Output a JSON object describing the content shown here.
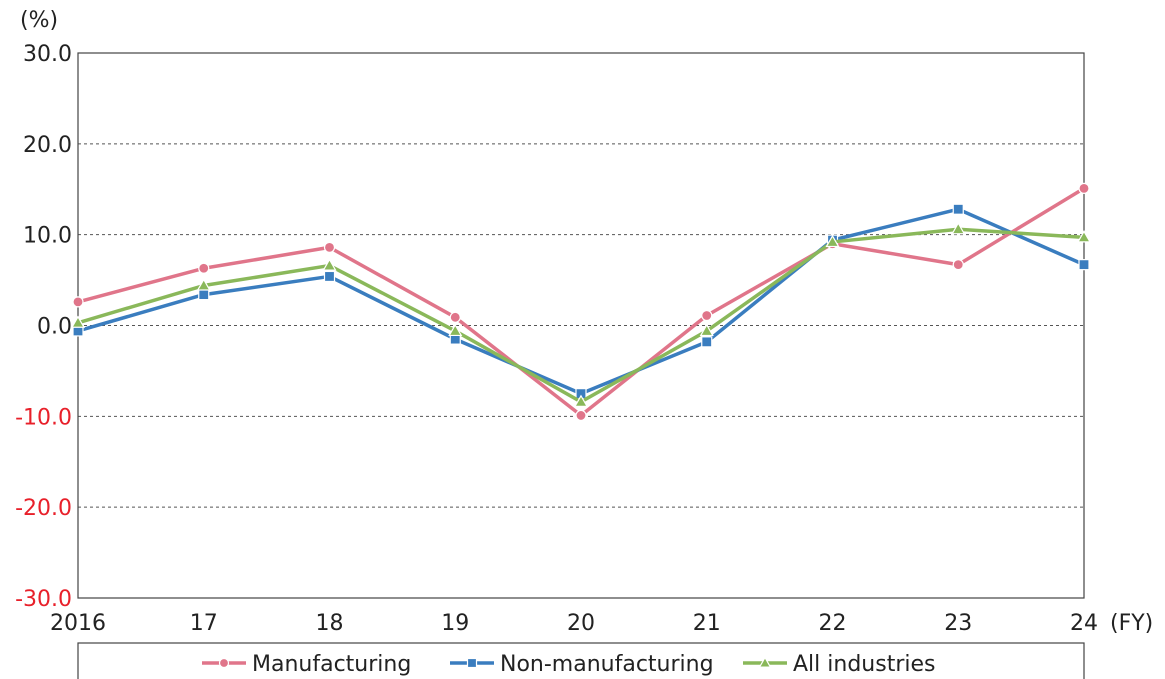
{
  "chart_data": {
    "type": "line",
    "y_unit_label": "(%)",
    "x_unit_label": "(FY)",
    "categories": [
      "2016",
      "17",
      "18",
      "19",
      "20",
      "21",
      "22",
      "23",
      "24"
    ],
    "ylim": [
      -30,
      30
    ],
    "y_ticks": [
      30,
      20,
      10,
      0,
      -10,
      -20,
      -30
    ],
    "y_tick_labels": [
      "30.0",
      "20.0",
      "10.0",
      "0.0",
      "-10.0",
      "-20.0",
      "-30.0"
    ],
    "negative_tick_color": "#e8202a",
    "positive_tick_color": "#222222",
    "grid": "horizontal dashed",
    "legend_position": "bottom",
    "series": [
      {
        "name": "Manufacturing",
        "color": "#e0758a",
        "marker": "circle",
        "values": [
          2.6,
          6.3,
          8.6,
          0.9,
          -9.9,
          1.1,
          9.0,
          6.7,
          15.1
        ]
      },
      {
        "name": "Non-manufacturing",
        "color": "#3a7dbf",
        "marker": "square",
        "values": [
          -0.6,
          3.4,
          5.4,
          -1.5,
          -7.5,
          -1.8,
          9.4,
          12.8,
          6.7
        ]
      },
      {
        "name": "All industries",
        "color": "#8ab85a",
        "marker": "triangle",
        "values": [
          0.3,
          4.4,
          6.6,
          -0.6,
          -8.4,
          -0.6,
          9.2,
          10.6,
          9.7
        ]
      }
    ]
  }
}
